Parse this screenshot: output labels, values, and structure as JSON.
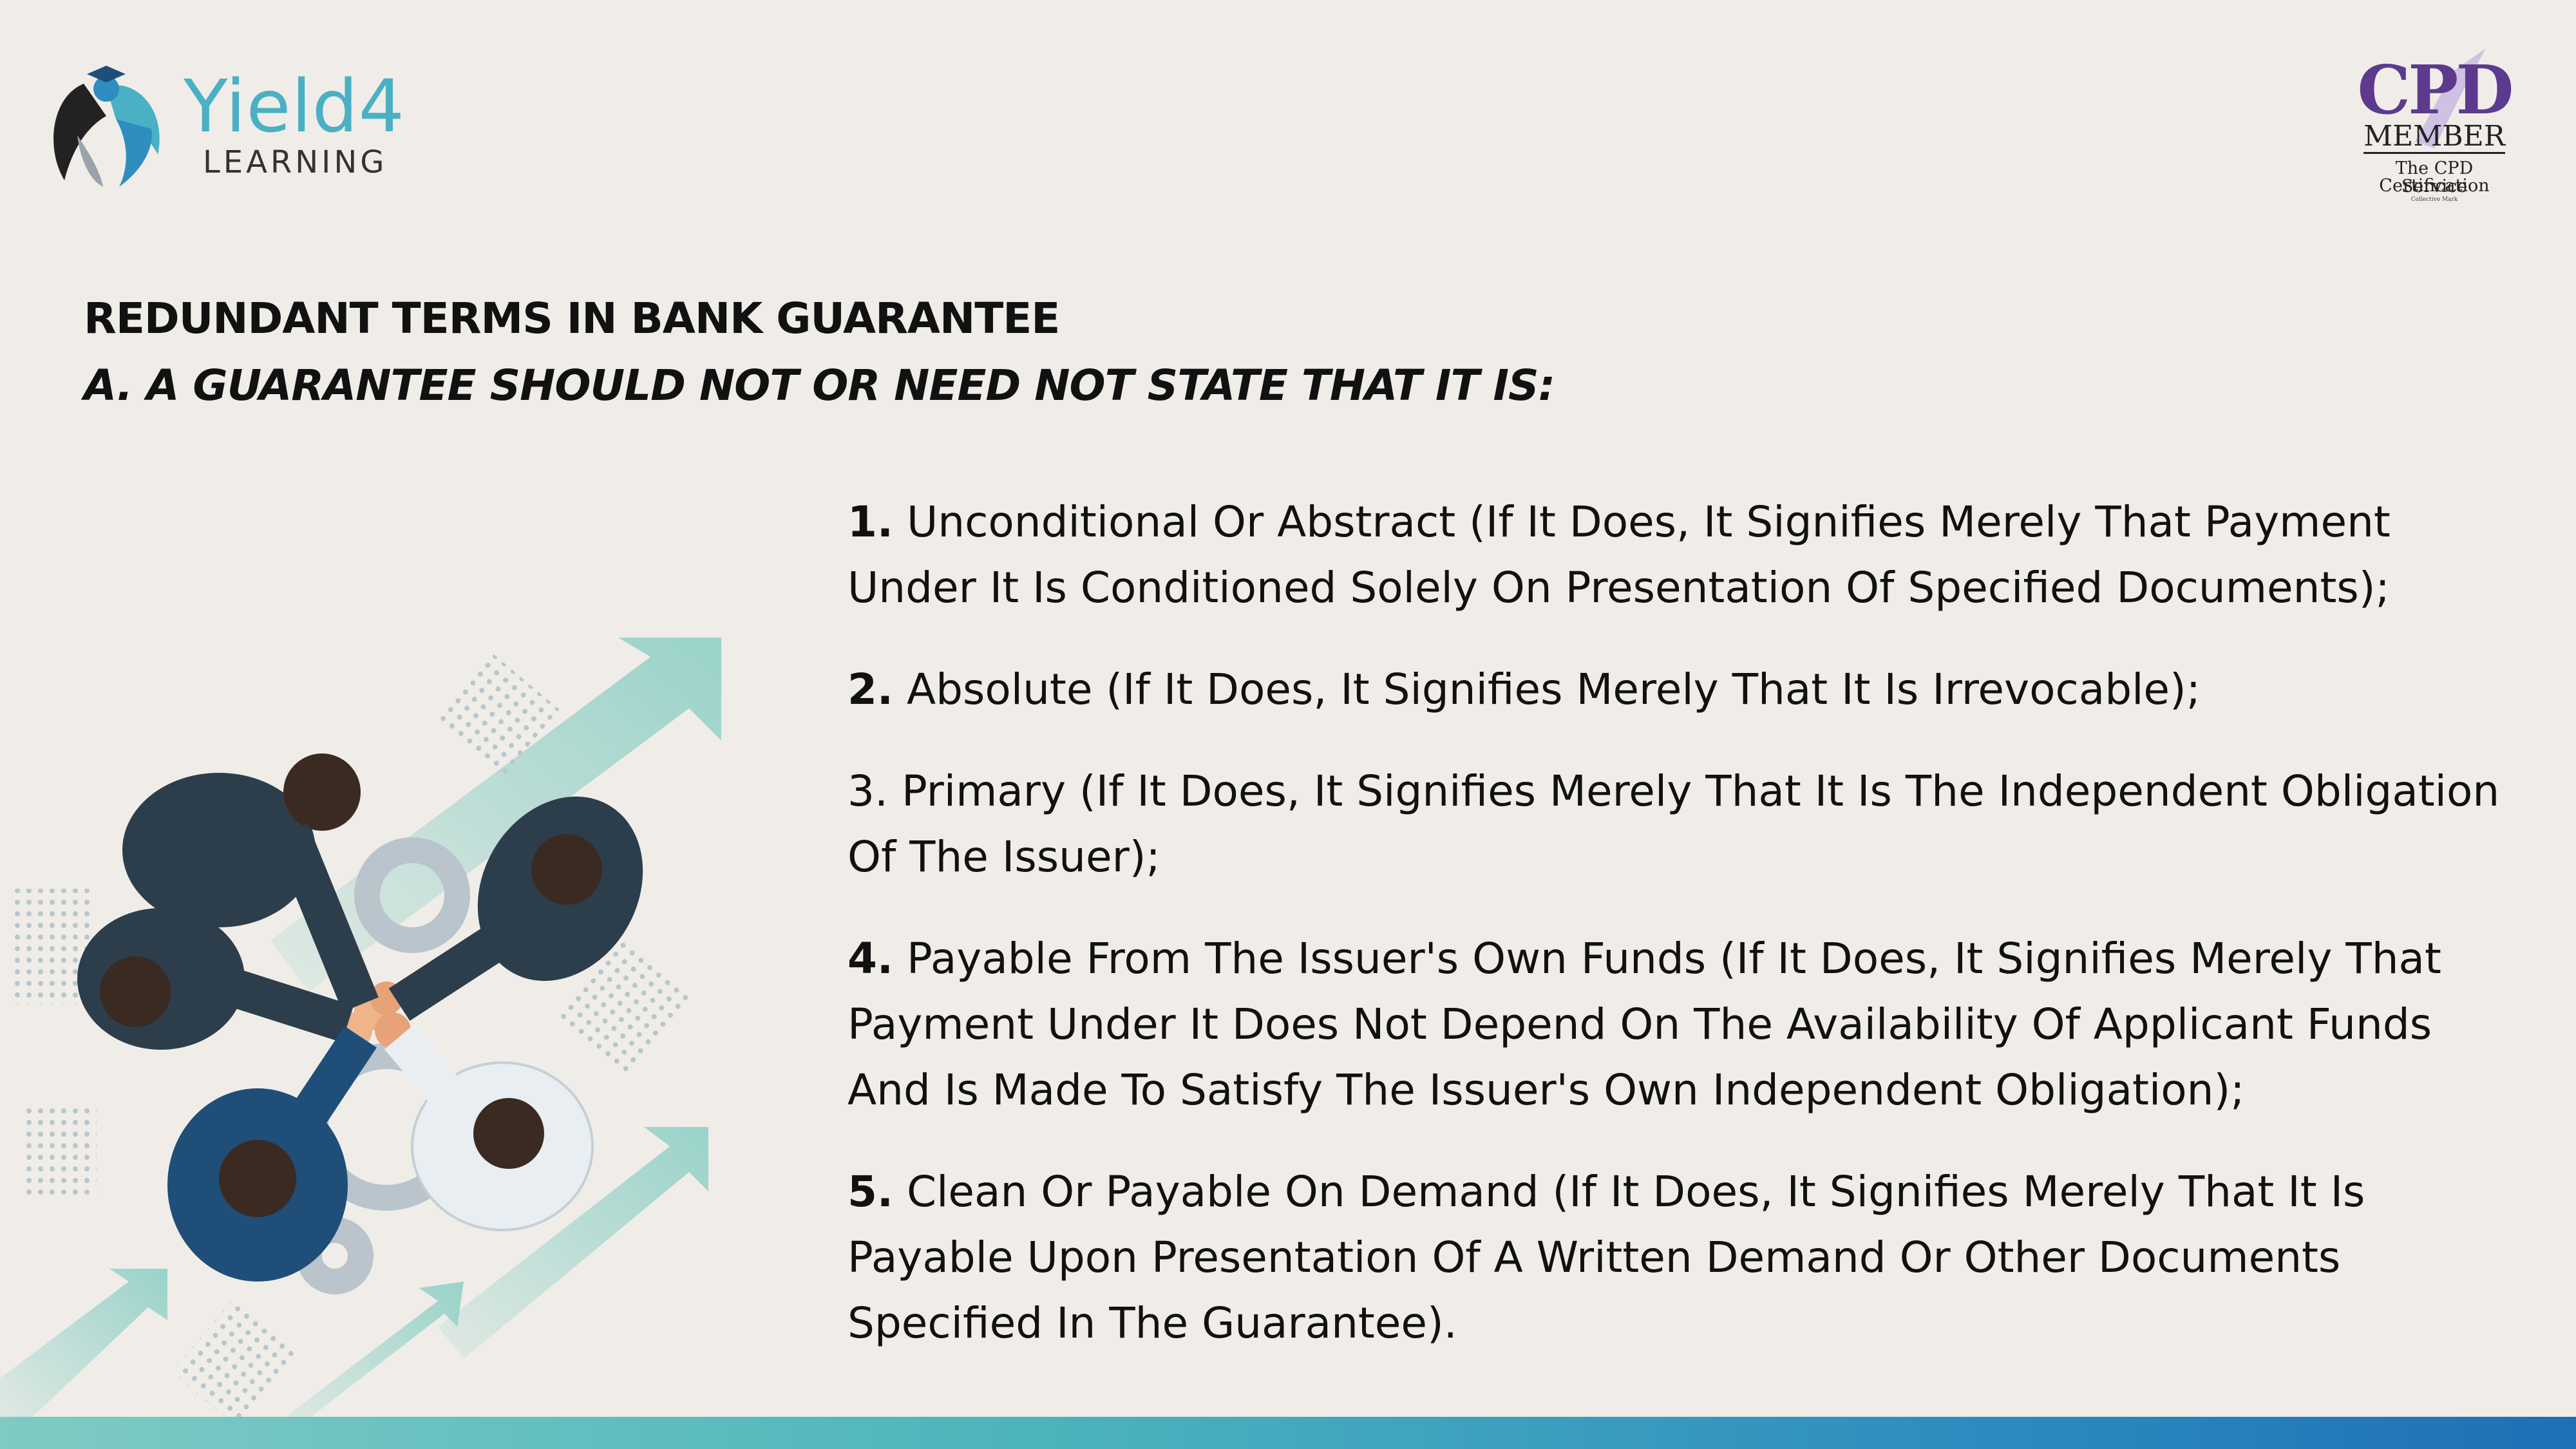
{
  "brand": {
    "logo_name": "Yield4",
    "logo_sub": "LEARNING",
    "logo_accent": "#4ab0c4"
  },
  "badge": {
    "big": "CPD",
    "member": "MEMBER",
    "line1": "The CPD Certification",
    "line2": "Service",
    "line3": "Collective Mark",
    "accent": "#5c3b8e"
  },
  "heading": {
    "title": "REDUNDANT TERMS IN BANK GUARANTEE",
    "subtitle": "A.  A GUARANTEE SHOULD NOT OR NEED NOT STATE THAT IT IS:"
  },
  "points": [
    {
      "num": "1.",
      "text": " Unconditional Or Abstract (If It Does, It Signifies Merely That Payment Under It Is Conditioned Solely On Presentation Of Specified Documents);"
    },
    {
      "num": "2.",
      "text": " Absolute (If It Does, It Signifies Merely That It Is Irrevocable);"
    },
    {
      "num": "3.",
      "text": " Primary (If It Does, It Signifies Merely That It Is The Independent Obligation Of The Issuer);"
    },
    {
      "num": "4.",
      "text": " Payable From The Issuer's Own Funds (If It Does, It Signifies Merely That Payment Under It Does Not Depend On The Availability Of Applicant Funds And Is Made To Satisfy The Issuer's Own Independent Obligation);"
    },
    {
      "num": "5.",
      "text": " Clean Or Payable On Demand (If It Does, It Signifies Merely That It Is Payable Upon Presentation Of A Written Demand Or Other Documents Specified In The Guarantee)."
    }
  ],
  "illustration": {
    "icon": "teamwork-hands-gears-arrows-illustration",
    "colors": {
      "arrow": "#8fd0c6",
      "suit_dark": "#2c3e4c",
      "suit_blue": "#1f4e79",
      "gear": "#b9c4cc"
    }
  },
  "footer_bar_colors": [
    "#7fcbc3",
    "#1f6fb5"
  ]
}
